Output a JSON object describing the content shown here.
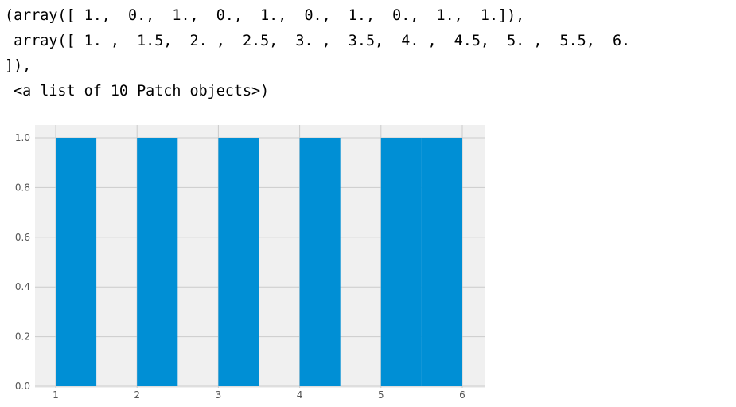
{
  "output": {
    "lines": [
      "(array([ 1.,  0.,  1.,  0.,  1.,  0.,  1.,  0.,  1.,  1.]),",
      " array([ 1. ,  1.5,  2. ,  2.5,  3. ,  3.5,  4. ,  4.5,  5. ,  5.5,  6.",
      "]),",
      " <a list of 10 Patch objects>)"
    ]
  },
  "chart_data": {
    "type": "bar",
    "counts": [
      1,
      0,
      1,
      0,
      1,
      0,
      1,
      0,
      1,
      1
    ],
    "bin_edges": [
      1,
      1.5,
      2,
      2.5,
      3,
      3.5,
      4,
      4.5,
      5,
      5.5,
      6
    ],
    "xlim": [
      1,
      6
    ],
    "ylim": [
      0,
      1.05
    ],
    "xticks": [
      "1",
      "2",
      "3",
      "4",
      "5",
      "6"
    ],
    "yticks": [
      "0.0",
      "0.2",
      "0.4",
      "0.6",
      "0.8",
      "1.0"
    ],
    "grid": true,
    "bar_color": "#008fd5",
    "background_color": "#f0f0f0",
    "grid_color": "#cbcbcb"
  }
}
